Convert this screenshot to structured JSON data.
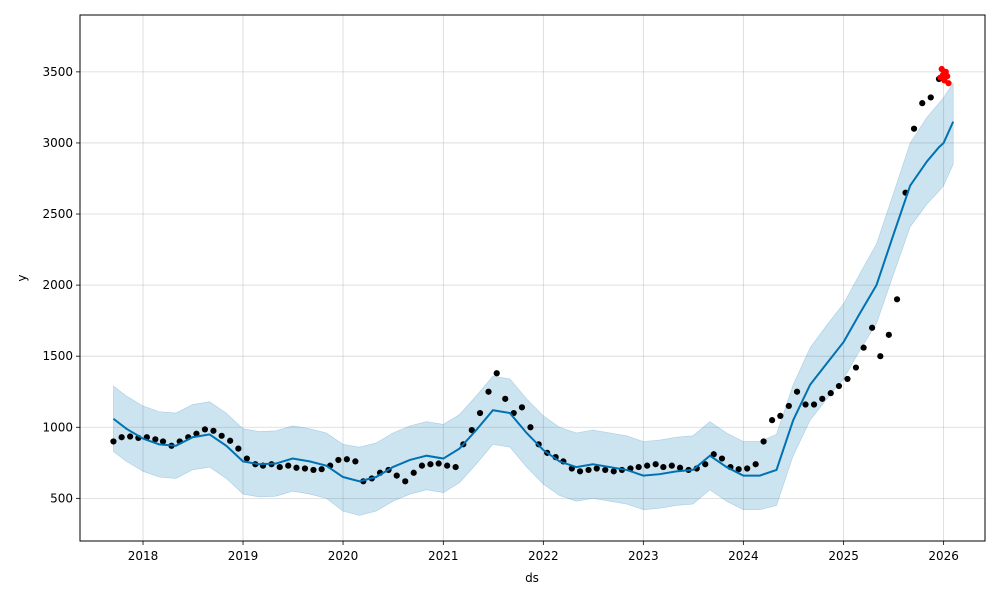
{
  "chart_data": {
    "type": "scatter",
    "xlabel": "ds",
    "ylabel": "y",
    "xlim": [
      "2017-05-16",
      "2026-06-01"
    ],
    "ylim": [
      200,
      3900
    ],
    "grid": true,
    "x_ticks": [
      "2018",
      "2019",
      "2020",
      "2021",
      "2022",
      "2023",
      "2024",
      "2025",
      "2026"
    ],
    "y_ticks": [
      "500",
      "1000",
      "1500",
      "2000",
      "2500",
      "3000",
      "3500"
    ],
    "colors": {
      "observed": "#000000",
      "forecast_line": "#0072B2",
      "uncertainty_band": "#0072B2",
      "recent": "#ff0000"
    },
    "series": [
      {
        "role": "observed",
        "points": [
          [
            "2017-09-15",
            900
          ],
          [
            "2017-10-15",
            930
          ],
          [
            "2017-11-15",
            935
          ],
          [
            "2017-12-15",
            925
          ],
          [
            "2018-01-15",
            930
          ],
          [
            "2018-02-15",
            915
          ],
          [
            "2018-03-15",
            900
          ],
          [
            "2018-04-15",
            870
          ],
          [
            "2018-05-15",
            900
          ],
          [
            "2018-06-15",
            930
          ],
          [
            "2018-07-15",
            955
          ],
          [
            "2018-08-15",
            985
          ],
          [
            "2018-09-15",
            975
          ],
          [
            "2018-10-15",
            940
          ],
          [
            "2018-11-15",
            905
          ],
          [
            "2018-12-15",
            850
          ],
          [
            "2019-01-15",
            780
          ],
          [
            "2019-02-15",
            740
          ],
          [
            "2019-03-15",
            730
          ],
          [
            "2019-04-15",
            740
          ],
          [
            "2019-05-15",
            720
          ],
          [
            "2019-06-15",
            730
          ],
          [
            "2019-07-15",
            715
          ],
          [
            "2019-08-15",
            710
          ],
          [
            "2019-09-15",
            700
          ],
          [
            "2019-10-15",
            705
          ],
          [
            "2019-11-15",
            730
          ],
          [
            "2019-12-15",
            770
          ],
          [
            "2020-01-15",
            775
          ],
          [
            "2020-02-15",
            760
          ],
          [
            "2020-03-15",
            620
          ],
          [
            "2020-04-15",
            640
          ],
          [
            "2020-05-15",
            680
          ],
          [
            "2020-06-15",
            700
          ],
          [
            "2020-07-15",
            660
          ],
          [
            "2020-08-15",
            620
          ],
          [
            "2020-09-15",
            680
          ],
          [
            "2020-10-15",
            730
          ],
          [
            "2020-11-15",
            740
          ],
          [
            "2020-12-15",
            745
          ],
          [
            "2021-01-15",
            730
          ],
          [
            "2021-02-15",
            720
          ],
          [
            "2021-03-15",
            880
          ],
          [
            "2021-04-15",
            980
          ],
          [
            "2021-05-15",
            1100
          ],
          [
            "2021-06-15",
            1250
          ],
          [
            "2021-07-15",
            1380
          ],
          [
            "2021-08-15",
            1200
          ],
          [
            "2021-09-15",
            1100
          ],
          [
            "2021-10-15",
            1140
          ],
          [
            "2021-11-15",
            1000
          ],
          [
            "2021-12-15",
            880
          ],
          [
            "2022-01-15",
            820
          ],
          [
            "2022-02-15",
            790
          ],
          [
            "2022-03-15",
            760
          ],
          [
            "2022-04-15",
            710
          ],
          [
            "2022-05-15",
            690
          ],
          [
            "2022-06-15",
            700
          ],
          [
            "2022-07-15",
            710
          ],
          [
            "2022-08-15",
            700
          ],
          [
            "2022-09-15",
            690
          ],
          [
            "2022-10-15",
            700
          ],
          [
            "2022-11-15",
            710
          ],
          [
            "2022-12-15",
            720
          ],
          [
            "2023-01-15",
            730
          ],
          [
            "2023-02-15",
            740
          ],
          [
            "2023-03-15",
            720
          ],
          [
            "2023-04-15",
            730
          ],
          [
            "2023-05-15",
            715
          ],
          [
            "2023-06-15",
            700
          ],
          [
            "2023-07-15",
            710
          ],
          [
            "2023-08-15",
            740
          ],
          [
            "2023-09-15",
            810
          ],
          [
            "2023-10-15",
            780
          ],
          [
            "2023-11-15",
            720
          ],
          [
            "2023-12-15",
            705
          ],
          [
            "2024-01-15",
            710
          ],
          [
            "2024-02-15",
            740
          ],
          [
            "2024-03-15",
            900
          ],
          [
            "2024-04-15",
            1050
          ],
          [
            "2024-05-15",
            1080
          ],
          [
            "2024-06-15",
            1150
          ],
          [
            "2024-07-15",
            1250
          ],
          [
            "2024-08-15",
            1160
          ],
          [
            "2024-09-15",
            1160
          ],
          [
            "2024-10-15",
            1200
          ],
          [
            "2024-11-15",
            1240
          ],
          [
            "2024-12-15",
            1290
          ],
          [
            "2025-01-15",
            1340
          ],
          [
            "2025-02-15",
            1420
          ],
          [
            "2025-03-15",
            1560
          ],
          [
            "2025-04-15",
            1700
          ],
          [
            "2025-05-15",
            1500
          ],
          [
            "2025-06-15",
            1650
          ],
          [
            "2025-07-15",
            1900
          ],
          [
            "2025-08-15",
            2650
          ],
          [
            "2025-09-15",
            3100
          ],
          [
            "2025-10-15",
            3280
          ],
          [
            "2025-11-15",
            3320
          ],
          [
            "2025-12-15",
            3450
          ]
        ]
      },
      {
        "role": "recent",
        "points": [
          [
            "2025-12-20",
            3460
          ],
          [
            "2025-12-25",
            3520
          ],
          [
            "2025-12-30",
            3480
          ],
          [
            "2026-01-04",
            3440
          ],
          [
            "2026-01-09",
            3500
          ],
          [
            "2026-01-14",
            3470
          ],
          [
            "2026-01-19",
            3420
          ]
        ]
      },
      {
        "role": "forecast",
        "points": [
          [
            "2017-09-15",
            1060,
            830,
            1290
          ],
          [
            "2017-11-01",
            990,
            760,
            1220
          ],
          [
            "2018-01-01",
            920,
            690,
            1150
          ],
          [
            "2018-03-01",
            880,
            650,
            1110
          ],
          [
            "2018-05-01",
            870,
            640,
            1100
          ],
          [
            "2018-07-01",
            930,
            700,
            1160
          ],
          [
            "2018-09-01",
            950,
            720,
            1180
          ],
          [
            "2018-11-01",
            870,
            640,
            1100
          ],
          [
            "2019-01-01",
            760,
            530,
            990
          ],
          [
            "2019-03-01",
            740,
            510,
            970
          ],
          [
            "2019-05-01",
            745,
            515,
            975
          ],
          [
            "2019-07-01",
            780,
            550,
            1010
          ],
          [
            "2019-09-01",
            760,
            530,
            990
          ],
          [
            "2019-11-01",
            730,
            500,
            960
          ],
          [
            "2020-01-01",
            650,
            410,
            880
          ],
          [
            "2020-03-01",
            620,
            380,
            860
          ],
          [
            "2020-05-01",
            650,
            410,
            890
          ],
          [
            "2020-07-01",
            720,
            480,
            960
          ],
          [
            "2020-09-01",
            770,
            530,
            1010
          ],
          [
            "2020-11-01",
            800,
            560,
            1040
          ],
          [
            "2021-01-01",
            780,
            540,
            1020
          ],
          [
            "2021-03-01",
            850,
            610,
            1090
          ],
          [
            "2021-05-01",
            980,
            740,
            1220
          ],
          [
            "2021-07-01",
            1120,
            880,
            1360
          ],
          [
            "2021-09-01",
            1100,
            860,
            1340
          ],
          [
            "2021-11-01",
            960,
            720,
            1200
          ],
          [
            "2022-01-01",
            840,
            600,
            1080
          ],
          [
            "2022-03-01",
            760,
            520,
            1000
          ],
          [
            "2022-05-01",
            720,
            480,
            960
          ],
          [
            "2022-07-01",
            740,
            500,
            980
          ],
          [
            "2022-09-01",
            720,
            480,
            960
          ],
          [
            "2022-11-01",
            700,
            460,
            940
          ],
          [
            "2023-01-01",
            660,
            420,
            900
          ],
          [
            "2023-03-01",
            670,
            430,
            910
          ],
          [
            "2023-05-01",
            690,
            450,
            930
          ],
          [
            "2023-07-01",
            700,
            460,
            940
          ],
          [
            "2023-09-01",
            800,
            560,
            1040
          ],
          [
            "2023-11-01",
            720,
            480,
            960
          ],
          [
            "2024-01-01",
            660,
            420,
            900
          ],
          [
            "2024-03-01",
            660,
            420,
            900
          ],
          [
            "2024-05-01",
            700,
            450,
            950
          ],
          [
            "2024-07-01",
            1050,
            800,
            1300
          ],
          [
            "2024-09-01",
            1300,
            1050,
            1560
          ],
          [
            "2024-11-01",
            1450,
            1200,
            1720
          ],
          [
            "2025-01-01",
            1600,
            1340,
            1870
          ],
          [
            "2025-03-01",
            1800,
            1540,
            2080
          ],
          [
            "2025-05-01",
            2000,
            1730,
            2290
          ],
          [
            "2025-07-01",
            2350,
            2070,
            2640
          ],
          [
            "2025-09-01",
            2700,
            2410,
            3000
          ],
          [
            "2025-11-01",
            2870,
            2570,
            3180
          ],
          [
            "2025-12-15",
            2970,
            2660,
            3280
          ],
          [
            "2026-01-01",
            3000,
            2700,
            3320
          ],
          [
            "2026-02-05",
            3150,
            2850,
            3420
          ]
        ]
      }
    ]
  }
}
